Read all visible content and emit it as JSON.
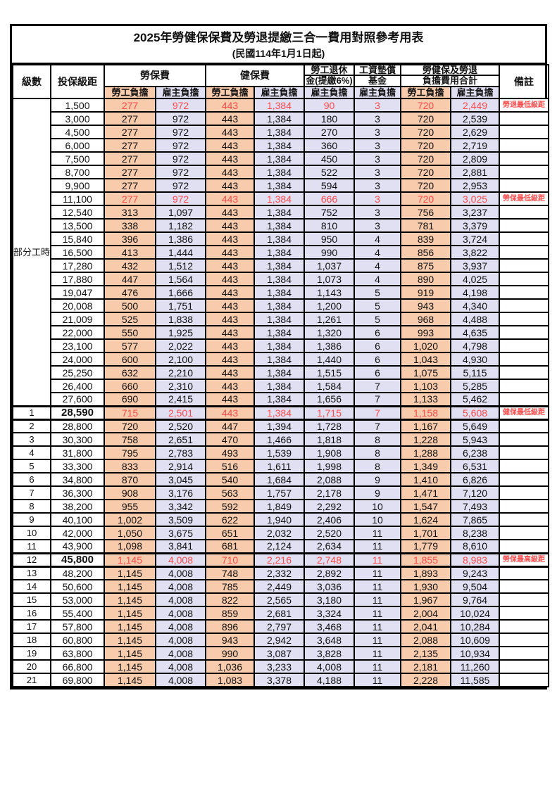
{
  "title": "2025年勞健保保費及勞退提繳三合一費用對照參考用表",
  "subtitle": "(民國114年1月1日起)",
  "colors": {
    "employee_bg": "#F8CBAD",
    "employer_bg": "#E1DFF2",
    "highlight_text": "#FB4B4B",
    "border": "#000000"
  },
  "header": {
    "level": "級數",
    "bracket": "投保級距",
    "labor_ins": "勞保費",
    "health_ins": "健保費",
    "pension_line1": "勞工退休",
    "pension_line2": "金(提繳6%)",
    "wage_fund_line1": "工資墊償",
    "wage_fund_line2": "基金",
    "total_line1": "勞健保及勞退",
    "total_line2": "負擔費用合計",
    "remark": "備註",
    "employee": "勞工負擔",
    "employer": "雇主負擔"
  },
  "group_label": "部分工時",
  "group_rows": 23,
  "column_kinds": [
    "emp",
    "er",
    "emp",
    "er",
    "er",
    "er",
    "emp",
    "er"
  ],
  "rows": [
    {
      "level": "",
      "bracket": "1,500",
      "v": [
        "277",
        "972",
        "443",
        "1,384",
        "90",
        "3",
        "720",
        "2,449"
      ],
      "remark": "勞退最低級距",
      "red": true,
      "key": false
    },
    {
      "level": "",
      "bracket": "3,000",
      "v": [
        "277",
        "972",
        "443",
        "1,384",
        "180",
        "3",
        "720",
        "2,539"
      ],
      "remark": "",
      "red": false,
      "key": false
    },
    {
      "level": "",
      "bracket": "4,500",
      "v": [
        "277",
        "972",
        "443",
        "1,384",
        "270",
        "3",
        "720",
        "2,629"
      ],
      "remark": "",
      "red": false,
      "key": false
    },
    {
      "level": "",
      "bracket": "6,000",
      "v": [
        "277",
        "972",
        "443",
        "1,384",
        "360",
        "3",
        "720",
        "2,719"
      ],
      "remark": "",
      "red": false,
      "key": false
    },
    {
      "level": "",
      "bracket": "7,500",
      "v": [
        "277",
        "972",
        "443",
        "1,384",
        "450",
        "3",
        "720",
        "2,809"
      ],
      "remark": "",
      "red": false,
      "key": false
    },
    {
      "level": "",
      "bracket": "8,700",
      "v": [
        "277",
        "972",
        "443",
        "1,384",
        "522",
        "3",
        "720",
        "2,881"
      ],
      "remark": "",
      "red": false,
      "key": false
    },
    {
      "level": "",
      "bracket": "9,900",
      "v": [
        "277",
        "972",
        "443",
        "1,384",
        "594",
        "3",
        "720",
        "2,953"
      ],
      "remark": "",
      "red": false,
      "key": false
    },
    {
      "level": "",
      "bracket": "11,100",
      "v": [
        "277",
        "972",
        "443",
        "1,384",
        "666",
        "3",
        "720",
        "3,025"
      ],
      "remark": "勞保最低級距",
      "red": true,
      "key": false
    },
    {
      "level": "",
      "bracket": "12,540",
      "v": [
        "313",
        "1,097",
        "443",
        "1,384",
        "752",
        "3",
        "756",
        "3,237"
      ],
      "remark": "",
      "red": false,
      "key": false
    },
    {
      "level": "",
      "bracket": "13,500",
      "v": [
        "338",
        "1,182",
        "443",
        "1,384",
        "810",
        "3",
        "781",
        "3,379"
      ],
      "remark": "",
      "red": false,
      "key": false
    },
    {
      "level": "",
      "bracket": "15,840",
      "v": [
        "396",
        "1,386",
        "443",
        "1,384",
        "950",
        "4",
        "839",
        "3,724"
      ],
      "remark": "",
      "red": false,
      "key": false
    },
    {
      "level": "",
      "bracket": "16,500",
      "v": [
        "413",
        "1,444",
        "443",
        "1,384",
        "990",
        "4",
        "856",
        "3,822"
      ],
      "remark": "",
      "red": false,
      "key": false
    },
    {
      "level": "",
      "bracket": "17,280",
      "v": [
        "432",
        "1,512",
        "443",
        "1,384",
        "1,037",
        "4",
        "875",
        "3,937"
      ],
      "remark": "",
      "red": false,
      "key": false
    },
    {
      "level": "",
      "bracket": "17,880",
      "v": [
        "447",
        "1,564",
        "443",
        "1,384",
        "1,073",
        "4",
        "890",
        "4,025"
      ],
      "remark": "",
      "red": false,
      "key": false
    },
    {
      "level": "",
      "bracket": "19,047",
      "v": [
        "476",
        "1,666",
        "443",
        "1,384",
        "1,143",
        "5",
        "919",
        "4,198"
      ],
      "remark": "",
      "red": false,
      "key": false
    },
    {
      "level": "",
      "bracket": "20,008",
      "v": [
        "500",
        "1,751",
        "443",
        "1,384",
        "1,200",
        "5",
        "943",
        "4,340"
      ],
      "remark": "",
      "red": false,
      "key": false
    },
    {
      "level": "",
      "bracket": "21,009",
      "v": [
        "525",
        "1,838",
        "443",
        "1,384",
        "1,261",
        "5",
        "968",
        "4,488"
      ],
      "remark": "",
      "red": false,
      "key": false
    },
    {
      "level": "",
      "bracket": "22,000",
      "v": [
        "550",
        "1,925",
        "443",
        "1,384",
        "1,320",
        "6",
        "993",
        "4,635"
      ],
      "remark": "",
      "red": false,
      "key": false
    },
    {
      "level": "",
      "bracket": "23,100",
      "v": [
        "577",
        "2,022",
        "443",
        "1,384",
        "1,386",
        "6",
        "1,020",
        "4,798"
      ],
      "remark": "",
      "red": false,
      "key": false
    },
    {
      "level": "",
      "bracket": "24,000",
      "v": [
        "600",
        "2,100",
        "443",
        "1,384",
        "1,440",
        "6",
        "1,043",
        "4,930"
      ],
      "remark": "",
      "red": false,
      "key": false
    },
    {
      "level": "",
      "bracket": "25,250",
      "v": [
        "632",
        "2,210",
        "443",
        "1,384",
        "1,515",
        "6",
        "1,075",
        "5,115"
      ],
      "remark": "",
      "red": false,
      "key": false
    },
    {
      "level": "",
      "bracket": "26,400",
      "v": [
        "660",
        "2,310",
        "443",
        "1,384",
        "1,584",
        "7",
        "1,103",
        "5,285"
      ],
      "remark": "",
      "red": false,
      "key": false
    },
    {
      "level": "",
      "bracket": "27,600",
      "v": [
        "690",
        "2,415",
        "443",
        "1,384",
        "1,656",
        "7",
        "1,133",
        "5,462"
      ],
      "remark": "",
      "red": false,
      "key": false
    },
    {
      "level": "1",
      "bracket": "28,590",
      "v": [
        "715",
        "2,501",
        "443",
        "1,384",
        "1,715",
        "7",
        "1,158",
        "5,608"
      ],
      "remark": "健保最低級距",
      "red": true,
      "key": true
    },
    {
      "level": "2",
      "bracket": "28,800",
      "v": [
        "720",
        "2,520",
        "447",
        "1,394",
        "1,728",
        "7",
        "1,167",
        "5,649"
      ],
      "remark": "",
      "red": false,
      "key": false
    },
    {
      "level": "3",
      "bracket": "30,300",
      "v": [
        "758",
        "2,651",
        "470",
        "1,466",
        "1,818",
        "8",
        "1,228",
        "5,943"
      ],
      "remark": "",
      "red": false,
      "key": false
    },
    {
      "level": "4",
      "bracket": "31,800",
      "v": [
        "795",
        "2,783",
        "493",
        "1,539",
        "1,908",
        "8",
        "1,288",
        "6,238"
      ],
      "remark": "",
      "red": false,
      "key": false
    },
    {
      "level": "5",
      "bracket": "33,300",
      "v": [
        "833",
        "2,914",
        "516",
        "1,611",
        "1,998",
        "8",
        "1,349",
        "6,531"
      ],
      "remark": "",
      "red": false,
      "key": false
    },
    {
      "level": "6",
      "bracket": "34,800",
      "v": [
        "870",
        "3,045",
        "540",
        "1,684",
        "2,088",
        "9",
        "1,410",
        "6,826"
      ],
      "remark": "",
      "red": false,
      "key": false
    },
    {
      "level": "7",
      "bracket": "36,300",
      "v": [
        "908",
        "3,176",
        "563",
        "1,757",
        "2,178",
        "9",
        "1,471",
        "7,120"
      ],
      "remark": "",
      "red": false,
      "key": false
    },
    {
      "level": "8",
      "bracket": "38,200",
      "v": [
        "955",
        "3,342",
        "592",
        "1,849",
        "2,292",
        "10",
        "1,547",
        "7,493"
      ],
      "remark": "",
      "red": false,
      "key": false
    },
    {
      "level": "9",
      "bracket": "40,100",
      "v": [
        "1,002",
        "3,509",
        "622",
        "1,940",
        "2,406",
        "10",
        "1,624",
        "7,865"
      ],
      "remark": "",
      "red": false,
      "key": false
    },
    {
      "level": "10",
      "bracket": "42,000",
      "v": [
        "1,050",
        "3,675",
        "651",
        "2,032",
        "2,520",
        "11",
        "1,701",
        "8,238"
      ],
      "remark": "",
      "red": false,
      "key": false
    },
    {
      "level": "11",
      "bracket": "43,900",
      "v": [
        "1,098",
        "3,841",
        "681",
        "2,124",
        "2,634",
        "11",
        "1,779",
        "8,610"
      ],
      "remark": "",
      "red": false,
      "key": false
    },
    {
      "level": "12",
      "bracket": "45,800",
      "v": [
        "1,145",
        "4,008",
        "710",
        "2,216",
        "2,748",
        "11",
        "1,855",
        "8,983"
      ],
      "remark": "勞保最高級距",
      "red": true,
      "key": true
    },
    {
      "level": "13",
      "bracket": "48,200",
      "v": [
        "1,145",
        "4,008",
        "748",
        "2,332",
        "2,892",
        "11",
        "1,893",
        "9,243"
      ],
      "remark": "",
      "red": false,
      "key": false
    },
    {
      "level": "14",
      "bracket": "50,600",
      "v": [
        "1,145",
        "4,008",
        "785",
        "2,449",
        "3,036",
        "11",
        "1,930",
        "9,504"
      ],
      "remark": "",
      "red": false,
      "key": false
    },
    {
      "level": "15",
      "bracket": "53,000",
      "v": [
        "1,145",
        "4,008",
        "822",
        "2,565",
        "3,180",
        "11",
        "1,967",
        "9,764"
      ],
      "remark": "",
      "red": false,
      "key": false
    },
    {
      "level": "16",
      "bracket": "55,400",
      "v": [
        "1,145",
        "4,008",
        "859",
        "2,681",
        "3,324",
        "11",
        "2,004",
        "10,024"
      ],
      "remark": "",
      "red": false,
      "key": false
    },
    {
      "level": "17",
      "bracket": "57,800",
      "v": [
        "1,145",
        "4,008",
        "896",
        "2,797",
        "3,468",
        "11",
        "2,041",
        "10,284"
      ],
      "remark": "",
      "red": false,
      "key": false
    },
    {
      "level": "18",
      "bracket": "60,800",
      "v": [
        "1,145",
        "4,008",
        "943",
        "2,942",
        "3,648",
        "11",
        "2,088",
        "10,609"
      ],
      "remark": "",
      "red": false,
      "key": false
    },
    {
      "level": "19",
      "bracket": "63,800",
      "v": [
        "1,145",
        "4,008",
        "990",
        "3,087",
        "3,828",
        "11",
        "2,135",
        "10,934"
      ],
      "remark": "",
      "red": false,
      "key": false
    },
    {
      "level": "20",
      "bracket": "66,800",
      "v": [
        "1,145",
        "4,008",
        "1,036",
        "3,233",
        "4,008",
        "11",
        "2,181",
        "11,260"
      ],
      "remark": "",
      "red": false,
      "key": false
    },
    {
      "level": "21",
      "bracket": "69,800",
      "v": [
        "1,145",
        "4,008",
        "1,083",
        "3,378",
        "4,188",
        "11",
        "2,228",
        "11,585"
      ],
      "remark": "",
      "red": false,
      "key": false
    }
  ]
}
